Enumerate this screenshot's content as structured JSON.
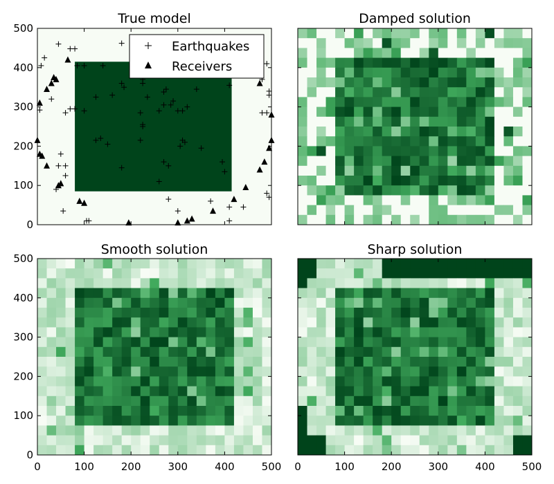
{
  "colors": {
    "scale_low": "#f7fcf5",
    "scale_high": "#00441b",
    "marker": "#000000"
  },
  "chart_data": [
    {
      "type": "heatmap",
      "title": "True model",
      "xlim": [
        0,
        500
      ],
      "ylim": [
        0,
        500
      ],
      "yticks": [
        "0",
        "100",
        "200",
        "300",
        "400",
        "500"
      ],
      "xticks": [],
      "show_yticklabels": true,
      "show_xticklabels": false,
      "region": {
        "x": [
          80,
          415
        ],
        "y": [
          85,
          415
        ],
        "value": "high",
        "background": "low"
      },
      "legend": {
        "position": "upper-right",
        "entries": [
          "Earthquakes",
          "Receivers"
        ]
      },
      "series": [
        {
          "name": "Earthquakes",
          "marker": "+",
          "points": [
            [
              45,
              460
            ],
            [
              70,
              448
            ],
            [
              80,
              448
            ],
            [
              15,
              425
            ],
            [
              8,
              405
            ],
            [
              5,
              292
            ],
            [
              30,
              320
            ],
            [
              70,
              295
            ],
            [
              80,
              295
            ],
            [
              60,
              285
            ],
            [
              85,
              405
            ],
            [
              100,
              405
            ],
            [
              140,
              405
            ],
            [
              180,
              462
            ],
            [
              205,
              462
            ],
            [
              215,
              405
            ],
            [
              225,
              370
            ],
            [
              225,
              360
            ],
            [
              180,
              360
            ],
            [
              185,
              350
            ],
            [
              160,
              330
            ],
            [
              125,
              325
            ],
            [
              270,
              338
            ],
            [
              275,
              345
            ],
            [
              340,
              345
            ],
            [
              235,
              325
            ],
            [
              285,
              305
            ],
            [
              300,
              290
            ],
            [
              310,
              290
            ],
            [
              320,
              300
            ],
            [
              290,
              315
            ],
            [
              270,
              305
            ],
            [
              220,
              285
            ],
            [
              260,
              290
            ],
            [
              225,
              255
            ],
            [
              225,
              250
            ],
            [
              220,
              215
            ],
            [
              135,
              220
            ],
            [
              125,
              215
            ],
            [
              150,
              205
            ],
            [
              305,
              200
            ],
            [
              310,
              215
            ],
            [
              315,
              210
            ],
            [
              350,
              195
            ],
            [
              395,
              160
            ],
            [
              400,
              135
            ],
            [
              270,
              160
            ],
            [
              280,
              150
            ],
            [
              260,
              110
            ],
            [
              180,
              145
            ],
            [
              45,
              150
            ],
            [
              60,
              150
            ],
            [
              40,
              90
            ],
            [
              60,
              125
            ],
            [
              100,
              290
            ],
            [
              50,
              180
            ],
            [
              55,
              35
            ],
            [
              280,
              65
            ],
            [
              300,
              35
            ],
            [
              105,
              10
            ],
            [
              110,
              10
            ],
            [
              370,
              60
            ],
            [
              410,
              355
            ],
            [
              480,
              285
            ],
            [
              490,
              285
            ],
            [
              495,
              330
            ],
            [
              495,
              340
            ],
            [
              480,
              370
            ],
            [
              490,
              410
            ],
            [
              410,
              10
            ],
            [
              440,
              45
            ],
            [
              490,
              80
            ],
            [
              495,
              70
            ],
            [
              410,
              45
            ]
          ]
        },
        {
          "name": "Receivers",
          "marker": "triangle",
          "points": [
            [
              65,
              420
            ],
            [
              35,
              375
            ],
            [
              40,
              370
            ],
            [
              30,
              360
            ],
            [
              20,
              345
            ],
            [
              5,
              310
            ],
            [
              0,
              215
            ],
            [
              5,
              180
            ],
            [
              10,
              175
            ],
            [
              20,
              150
            ],
            [
              45,
              100
            ],
            [
              50,
              105
            ],
            [
              90,
              60
            ],
            [
              100,
              55
            ],
            [
              195,
              5
            ],
            [
              300,
              5
            ],
            [
              320,
              10
            ],
            [
              330,
              15
            ],
            [
              375,
              35
            ],
            [
              420,
              65
            ],
            [
              445,
              95
            ],
            [
              475,
              140
            ],
            [
              485,
              160
            ],
            [
              495,
              195
            ],
            [
              500,
              215
            ],
            [
              500,
              280
            ],
            [
              475,
              360
            ]
          ]
        }
      ]
    },
    {
      "type": "heatmap",
      "title": "Damped solution",
      "xlim": [
        0,
        500
      ],
      "ylim": [
        0,
        500
      ],
      "xticks": [],
      "yticks": [],
      "show_yticklabels": false,
      "show_xticklabels": false,
      "grid": {
        "nx": 25,
        "ny": 20,
        "core_cols": [
          4,
          20
        ],
        "core_rows": [
          3,
          16
        ],
        "noise": "strong"
      }
    },
    {
      "type": "heatmap",
      "title": "Smooth solution",
      "xlim": [
        0,
        500
      ],
      "ylim": [
        0,
        500
      ],
      "xticks": [
        "0",
        "100",
        "200",
        "300",
        "400",
        "500"
      ],
      "yticks": [
        "0",
        "100",
        "200",
        "300",
        "400",
        "500"
      ],
      "show_yticklabels": true,
      "show_xticklabels": true,
      "grid": {
        "nx": 25,
        "ny": 20,
        "core_cols": [
          4,
          20
        ],
        "core_rows": [
          3,
          16
        ],
        "noise": "mild"
      }
    },
    {
      "type": "heatmap",
      "title": "Sharp solution",
      "xlim": [
        0,
        500
      ],
      "ylim": [
        0,
        500
      ],
      "xticks": [
        "0",
        "100",
        "200",
        "300",
        "400",
        "500"
      ],
      "yticks": [],
      "show_yticklabels": false,
      "show_xticklabels": true,
      "grid": {
        "nx": 25,
        "ny": 20,
        "core_cols": [
          4,
          20
        ],
        "core_rows": [
          3,
          16
        ],
        "noise": "mild",
        "dark_corners": true
      }
    }
  ]
}
